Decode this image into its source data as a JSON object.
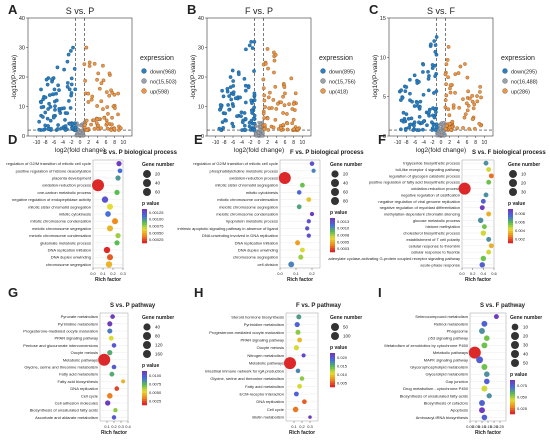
{
  "figure": {
    "volcano_axis": {
      "xlabel": "log2(fold change)",
      "ylabel": "-log10(P-value)"
    },
    "legend_heading": "expression",
    "gene_number_heading": "Gene number",
    "p_value_heading": "p value",
    "rich_factor_label": "Rich factor"
  },
  "chart_data": [
    {
      "type": "scatter",
      "panel": "A",
      "title": "S vs. P",
      "xlabel": "log2(fold change)",
      "ylabel": "-log10(P-value)",
      "xlim": [
        -12,
        12
      ],
      "ylim": [
        0,
        40
      ],
      "xticks": [
        "-10",
        "-8",
        "-6",
        "-4",
        "-2",
        "0",
        "2",
        "4",
        "6",
        "8",
        "10"
      ],
      "yticks": [
        "0",
        "10",
        "20",
        "30",
        "40"
      ],
      "series": [
        {
          "name": "down(968)",
          "color": "#2a7fc0"
        },
        {
          "name": "no(15,503)",
          "color": "#9aa3ad"
        },
        {
          "name": "up(598)",
          "color": "#e8964a"
        }
      ]
    },
    {
      "type": "scatter",
      "panel": "B",
      "title": "F vs. P",
      "xlabel": "log2(fold change)",
      "ylabel": "-log10(P-value)",
      "xlim": [
        -12,
        12
      ],
      "ylim": [
        0,
        40
      ],
      "xticks": [
        "-10",
        "-8",
        "-6",
        "-4",
        "-2",
        "0",
        "2",
        "4",
        "6",
        "8",
        "10"
      ],
      "yticks": [
        "0",
        "10",
        "20",
        "30",
        "40"
      ],
      "series": [
        {
          "name": "down(895)",
          "color": "#2a7fc0"
        },
        {
          "name": "no(15,756)",
          "color": "#9aa3ad"
        },
        {
          "name": "up(418)",
          "color": "#e8964a"
        }
      ]
    },
    {
      "type": "scatter",
      "panel": "C",
      "title": "S vs. F",
      "xlabel": "log2(fold change)",
      "ylabel": "-log10(P-value)",
      "xlim": [
        -12,
        12
      ],
      "ylim": [
        0,
        15
      ],
      "xticks": [
        "-10",
        "-8",
        "-6",
        "-4",
        "-2",
        "0",
        "2",
        "4",
        "6",
        "8",
        "10"
      ],
      "yticks": [
        "0",
        "5",
        "10",
        "15"
      ],
      "series": [
        {
          "name": "down(295)",
          "color": "#2a7fc0"
        },
        {
          "name": "no(16,488)",
          "color": "#9aa3ad"
        },
        {
          "name": "up(286)",
          "color": "#e8964a"
        }
      ]
    },
    {
      "type": "scatter",
      "panel": "D",
      "title": "S vs. P biological process",
      "xlabel": "Rich factor",
      "xlim": [
        0,
        0.3
      ],
      "xticks": [
        "0.0",
        "0.1",
        "0.2",
        "0.3"
      ],
      "categories": [
        "regulation of G2/M transition of mitotic cell cycle",
        "positive regulation of histone deacetylation",
        "placenta development",
        "oxidation-reduction process",
        "one-carbon metabolic process",
        "negative regulation of endopeptidase activity",
        "mitotic sister chromatid segregation",
        "mitotic cytokinesis",
        "mitotic chromosome condensation",
        "meiotic chromosome segregation",
        "meiotic chromosome condensation",
        "glutamate metabolic process",
        "DNA replication initiation",
        "DNA duplex unwinding",
        "chromosome segregation"
      ],
      "rich_factor": [
        0.26,
        0.27,
        0.25,
        0.05,
        0.24,
        0.12,
        0.17,
        0.15,
        0.22,
        0.17,
        0.25,
        0.24,
        0.14,
        0.17,
        0.16
      ],
      "gene_number": [
        3,
        2,
        3,
        35,
        3,
        6,
        5,
        4,
        5,
        5,
        3,
        3,
        6,
        5,
        6
      ],
      "p_value": [
        0.0012,
        0.001,
        0.0009,
        0.0002,
        0.0008,
        0.0011,
        0.0006,
        0.001,
        0.0004,
        0.0005,
        0.0007,
        0.0008,
        0.0002,
        0.0003,
        0.0005
      ],
      "size_legend": [
        "20",
        "40",
        "60"
      ],
      "color_legend": [
        "0.00125",
        "0.00100",
        "0.00075",
        "0.00050",
        "0.00025"
      ]
    },
    {
      "type": "scatter",
      "panel": "E",
      "title": "F vs. P biological process",
      "xlabel": "Rich factor",
      "xlim": [
        0,
        0.25
      ],
      "xticks": [
        "0.0",
        "0.1",
        "0.2"
      ],
      "categories": [
        "regulation of G2/M transition of mitotic cell cycle",
        "phosphatidylcholine metabolic process",
        "oxidation-reduction process",
        "mitotic sister chromatid segregation",
        "mitotic cytokinesis",
        "mitotic chromosome condensation",
        "meiotic chromosome segregation",
        "meiotic chromosome condensation",
        "lipoprotein metabolic process",
        "intrinsic apoptotic signaling pathway in absence of ligand",
        "DNA unwinding involved in DNA replication",
        "DNA replication initiation",
        "DNA duplex unwinding",
        "chromosome segregation",
        "cell division"
      ],
      "rich_factor": [
        0.2,
        0.21,
        0.03,
        0.14,
        0.12,
        0.18,
        0.12,
        0.2,
        0.18,
        0.17,
        0.18,
        0.11,
        0.14,
        0.13,
        0.07
      ],
      "gene_number": [
        4,
        3,
        80,
        5,
        4,
        5,
        5,
        3,
        3,
        3,
        3,
        6,
        5,
        6,
        10
      ],
      "p_value": [
        0.0012,
        0.001,
        0.0001,
        0.0008,
        0.0011,
        0.0005,
        0.0009,
        0.0013,
        0.0012,
        0.0012,
        0.0012,
        0.0004,
        0.0006,
        0.0007,
        0.001
      ],
      "size_legend": [
        "20",
        "40",
        "60",
        "80"
      ],
      "color_legend": [
        "0.0013",
        "0.0010",
        "0.0008",
        "0.0005",
        "0.0003"
      ]
    },
    {
      "type": "scatter",
      "panel": "F",
      "title": "S vs. F biological process",
      "xlabel": "Rich factor",
      "xlim": [
        0,
        0.6
      ],
      "xticks": [
        "0.0",
        "0.2",
        "0.4",
        "0.6"
      ],
      "categories": [
        "triglyceride biosynthetic process",
        "toll-like receptor 4 signaling pathway",
        "regulation of glycogen catabolic process",
        "positive regulation of fatty acid biosynthetic process",
        "oxidation-reduction process",
        "negative regulation of ossification",
        "negative regulation of viral genome replication",
        "negative regulation of myoblast differentiation",
        "methylation-dependent chromatin silencing",
        "glucose metabolic process",
        "histone methylation",
        "cholesterol biosynthetic process",
        "establishment of T cell polarity",
        "cellular response to thrombin",
        "cellular response to fluoride",
        "adenylate cyclase-activating G-protein coupled receptor signaling pathway",
        "acute-phase response"
      ],
      "rich_factor": [
        0.45,
        0.5,
        0.55,
        0.5,
        0.05,
        0.45,
        0.4,
        0.38,
        0.5,
        0.35,
        0.42,
        0.4,
        0.5,
        0.55,
        0.5,
        0.4,
        0.38
      ],
      "gene_number": [
        2,
        2,
        2,
        2,
        30,
        2,
        2,
        2,
        2,
        3,
        2,
        3,
        2,
        2,
        2,
        3,
        3
      ],
      "p_value": [
        0.006,
        0.004,
        0.002,
        0.005,
        0.001,
        0.006,
        0.007,
        0.008,
        0.003,
        0.006,
        0.005,
        0.004,
        0.006,
        0.003,
        0.004,
        0.005,
        0.007
      ],
      "size_legend": [
        "10",
        "20",
        "30"
      ],
      "color_legend": [
        "0.008",
        "0.006",
        "0.004",
        "0.002"
      ]
    },
    {
      "type": "scatter",
      "panel": "G",
      "title": "S vs. P pathway",
      "xlabel": "Rich factor",
      "xlim": [
        0,
        0.4
      ],
      "xticks": [
        "0.1",
        "0.2",
        "0.3",
        "0.4"
      ],
      "categories": [
        "Pyruvate metabolism",
        "Pyrimidine metabolism",
        "Progesterone-mediated oocyte maturation",
        "PPAR signaling pathway",
        "Pentose and glucuronate interconversions",
        "Oocyte meiosis",
        "Metabolic pathways",
        "Glycine, serine and threonine metabolism",
        "Fatty acid metabolism",
        "Fatty acid biosynthesis",
        "DNA replication",
        "Cell cycle",
        "Cell adhesion molecules",
        "Biosynthesis of unsaturated fatty acids",
        "Ascorbate and aldarate metabolism"
      ],
      "rich_factor": [
        0.18,
        0.14,
        0.14,
        0.16,
        0.2,
        0.14,
        0.06,
        0.2,
        0.17,
        0.33,
        0.24,
        0.14,
        0.11,
        0.22,
        0.2
      ],
      "gene_number": [
        8,
        12,
        12,
        10,
        8,
        13,
        150,
        8,
        10,
        4,
        8,
        16,
        14,
        6,
        7
      ],
      "p_value": [
        0.009,
        0.009,
        0.007,
        0.004,
        0.008,
        0.006,
        0.0005,
        0.008,
        0.006,
        0.003,
        0.001,
        0.002,
        0.009,
        0.005,
        0.008
      ],
      "size_legend": [
        "40",
        "80",
        "120",
        "160"
      ],
      "color_legend": [
        "0.0100",
        "0.0075",
        "0.0050",
        "0.0025"
      ]
    },
    {
      "type": "scatter",
      "panel": "H",
      "title": "F vs. P pathway",
      "xlabel": "Rich factor",
      "xlim": [
        0,
        0.4
      ],
      "xticks": [
        "0.1",
        "0.2",
        "0.3"
      ],
      "categories": [
        "Steroid hormone biosynthesis",
        "Pyrimidine metabolism",
        "Progesterone-mediated oocyte maturation",
        "PPAR signaling pathway",
        "Oocyte meiosis",
        "Nitrogen metabolism",
        "Metabolic pathways",
        "Intestinal immune network for IgA production",
        "Glycine, serine and threonine metabolism",
        "Fatty acid metabolism",
        "ECM-receptor interaction",
        "DNA replication",
        "Cell cycle",
        "Biotin metabolism"
      ],
      "rich_factor": [
        0.16,
        0.14,
        0.15,
        0.17,
        0.13,
        0.22,
        0.05,
        0.15,
        0.2,
        0.17,
        0.13,
        0.23,
        0.12,
        0.3
      ],
      "gene_number": [
        10,
        12,
        11,
        9,
        12,
        5,
        140,
        7,
        7,
        9,
        9,
        8,
        15,
        2
      ],
      "p_value": [
        0.015,
        0.018,
        0.012,
        0.008,
        0.01,
        0.02,
        0.002,
        0.016,
        0.012,
        0.01,
        0.018,
        0.004,
        0.005,
        0.021
      ],
      "size_legend": [
        "50",
        "100"
      ],
      "color_legend": [
        "0.020",
        "0.015",
        "0.010",
        "0.005"
      ]
    },
    {
      "type": "scatter",
      "panel": "I",
      "title": "S vs. F pathway",
      "xlabel": "Rich factor",
      "xlim": [
        0,
        0.3
      ],
      "xticks": [
        "0.00",
        "0.05",
        "0.10",
        "0.15",
        "0.20",
        "0.25"
      ],
      "categories": [
        "Selenocompound metabolism",
        "Retinol metabolism",
        "Phagosome",
        "p53 signaling pathway",
        "Metabolism of xenobiotics by cytochrome P450",
        "Metabolic pathways",
        "MAPK signaling pathway",
        "Glycerophospholipid metabolism",
        "Glycerolipid metabolism",
        "Gap junction",
        "Drug metabolism - cytochrome P450",
        "Biosynthesis of unsaturated fatty acids",
        "Biosynthesis of cofactors",
        "Apoptosis",
        "Aminoacyl-tRNA biosynthesis"
      ],
      "rich_factor": [
        0.22,
        0.12,
        0.1,
        0.14,
        0.12,
        0.04,
        0.08,
        0.12,
        0.14,
        0.14,
        0.12,
        0.16,
        0.1,
        0.1,
        0.12
      ],
      "gene_number": [
        3,
        6,
        6,
        5,
        6,
        45,
        10,
        6,
        5,
        5,
        6,
        4,
        6,
        6,
        5
      ],
      "p_value": [
        0.08,
        0.07,
        0.06,
        0.05,
        0.05,
        0.01,
        0.07,
        0.05,
        0.06,
        0.07,
        0.04,
        0.06,
        0.07,
        0.08,
        0.07
      ],
      "size_legend": [
        "10",
        "20",
        "30",
        "40",
        "50"
      ],
      "color_legend": [
        "0.075",
        "0.050",
        "0.025"
      ]
    }
  ]
}
